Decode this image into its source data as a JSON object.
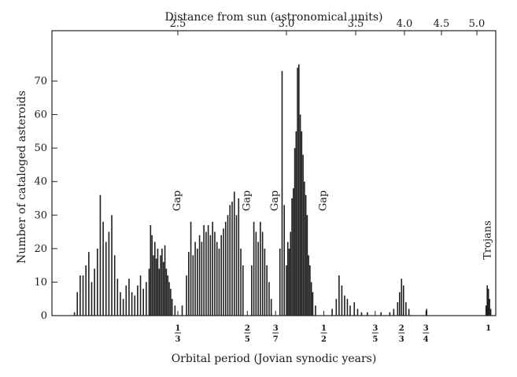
{
  "chart_data": {
    "type": "bar",
    "xlabel": "Orbital period (Jovian synodic years)",
    "ylabel": "Number of cataloged asteroids",
    "top_axis_label": "Distance from sun (astronomical units)",
    "ylim": [
      0,
      76
    ],
    "yticks": [
      "0",
      "10",
      "20",
      "30",
      "40",
      "50",
      "60",
      "70"
    ],
    "top_ticks": [
      {
        "label": "2.5",
        "au": 2.5
      },
      {
        "label": "3.0",
        "au": 3.0
      },
      {
        "label": "3.5",
        "au": 3.5
      },
      {
        "label": "4.0",
        "au": 4.0
      },
      {
        "label": "4.5",
        "au": 4.5
      },
      {
        "label": "5.0",
        "au": 5.0
      }
    ],
    "bottom_ticks": [
      {
        "num": "1",
        "den": "3",
        "au": 2.5
      },
      {
        "num": "2",
        "den": "5",
        "au": 2.82
      },
      {
        "num": "3",
        "den": "7",
        "au": 2.95
      },
      {
        "num": "1",
        "den": "2",
        "au": 3.27
      },
      {
        "num": "3",
        "den": "5",
        "au": 3.7
      },
      {
        "num": "2",
        "den": "3",
        "au": 3.97
      },
      {
        "num": "3",
        "den": "4",
        "au": 4.29
      },
      {
        "num": "1",
        "den": "",
        "au": 5.2
      }
    ],
    "annotations": [
      {
        "text": "Gap",
        "au": 2.5
      },
      {
        "text": "Gap",
        "au": 2.82
      },
      {
        "text": "Gap",
        "au": 2.95
      },
      {
        "text": "Gap",
        "au": 3.27
      },
      {
        "text": "Trojans",
        "au": 5.2
      }
    ],
    "bars": [
      {
        "au": 1.78,
        "v": 1
      },
      {
        "au": 1.8,
        "v": 7
      },
      {
        "au": 1.82,
        "v": 12
      },
      {
        "au": 1.84,
        "v": 12
      },
      {
        "au": 1.86,
        "v": 15
      },
      {
        "au": 1.88,
        "v": 19
      },
      {
        "au": 1.9,
        "v": 10
      },
      {
        "au": 1.92,
        "v": 14
      },
      {
        "au": 1.94,
        "v": 20
      },
      {
        "au": 1.96,
        "v": 36
      },
      {
        "au": 1.98,
        "v": 28
      },
      {
        "au": 2.0,
        "v": 22
      },
      {
        "au": 2.02,
        "v": 25
      },
      {
        "au": 2.04,
        "v": 30
      },
      {
        "au": 2.06,
        "v": 18
      },
      {
        "au": 2.08,
        "v": 11
      },
      {
        "au": 2.1,
        "v": 7
      },
      {
        "au": 2.12,
        "v": 5
      },
      {
        "au": 2.14,
        "v": 9
      },
      {
        "au": 2.16,
        "v": 11
      },
      {
        "au": 2.18,
        "v": 7
      },
      {
        "au": 2.2,
        "v": 6
      },
      {
        "au": 2.22,
        "v": 9
      },
      {
        "au": 2.24,
        "v": 12
      },
      {
        "au": 2.26,
        "v": 8
      },
      {
        "au": 2.28,
        "v": 10
      },
      {
        "au": 2.3,
        "v": 14
      },
      {
        "au": 2.31,
        "v": 27
      },
      {
        "au": 2.32,
        "v": 24
      },
      {
        "au": 2.33,
        "v": 18
      },
      {
        "au": 2.34,
        "v": 22
      },
      {
        "au": 2.35,
        "v": 17
      },
      {
        "au": 2.36,
        "v": 20
      },
      {
        "au": 2.37,
        "v": 14
      },
      {
        "au": 2.38,
        "v": 18
      },
      {
        "au": 2.39,
        "v": 20
      },
      {
        "au": 2.4,
        "v": 16
      },
      {
        "au": 2.41,
        "v": 21
      },
      {
        "au": 2.42,
        "v": 14
      },
      {
        "au": 2.43,
        "v": 12
      },
      {
        "au": 2.44,
        "v": 10
      },
      {
        "au": 2.45,
        "v": 8
      },
      {
        "au": 2.46,
        "v": 5
      },
      {
        "au": 2.48,
        "v": 3
      },
      {
        "au": 2.52,
        "v": 3
      },
      {
        "au": 2.54,
        "v": 12
      },
      {
        "au": 2.55,
        "v": 19
      },
      {
        "au": 2.56,
        "v": 28
      },
      {
        "au": 2.57,
        "v": 18
      },
      {
        "au": 2.58,
        "v": 22
      },
      {
        "au": 2.59,
        "v": 20
      },
      {
        "au": 2.6,
        "v": 24
      },
      {
        "au": 2.61,
        "v": 22
      },
      {
        "au": 2.62,
        "v": 27
      },
      {
        "au": 2.63,
        "v": 25
      },
      {
        "au": 2.64,
        "v": 27
      },
      {
        "au": 2.65,
        "v": 24
      },
      {
        "au": 2.66,
        "v": 28
      },
      {
        "au": 2.67,
        "v": 25
      },
      {
        "au": 2.68,
        "v": 22
      },
      {
        "au": 2.69,
        "v": 20
      },
      {
        "au": 2.7,
        "v": 24
      },
      {
        "au": 2.71,
        "v": 26
      },
      {
        "au": 2.72,
        "v": 28
      },
      {
        "au": 2.73,
        "v": 30
      },
      {
        "au": 2.74,
        "v": 33
      },
      {
        "au": 2.75,
        "v": 34
      },
      {
        "au": 2.76,
        "v": 37
      },
      {
        "au": 2.77,
        "v": 30
      },
      {
        "au": 2.78,
        "v": 35
      },
      {
        "au": 2.79,
        "v": 20
      },
      {
        "au": 2.8,
        "v": 15
      },
      {
        "au": 2.84,
        "v": 15
      },
      {
        "au": 2.85,
        "v": 28
      },
      {
        "au": 2.86,
        "v": 25
      },
      {
        "au": 2.87,
        "v": 22
      },
      {
        "au": 2.88,
        "v": 28
      },
      {
        "au": 2.89,
        "v": 25
      },
      {
        "au": 2.9,
        "v": 20
      },
      {
        "au": 2.91,
        "v": 15
      },
      {
        "au": 2.92,
        "v": 10
      },
      {
        "au": 2.93,
        "v": 5
      },
      {
        "au": 2.97,
        "v": 20
      },
      {
        "au": 2.98,
        "v": 73
      },
      {
        "au": 2.99,
        "v": 33
      },
      {
        "au": 3.0,
        "v": 15
      },
      {
        "au": 3.01,
        "v": 22
      },
      {
        "au": 3.02,
        "v": 20
      },
      {
        "au": 3.03,
        "v": 25
      },
      {
        "au": 3.04,
        "v": 35
      },
      {
        "au": 3.05,
        "v": 38
      },
      {
        "au": 3.06,
        "v": 50
      },
      {
        "au": 3.07,
        "v": 55
      },
      {
        "au": 3.08,
        "v": 74
      },
      {
        "au": 3.09,
        "v": 75
      },
      {
        "au": 3.1,
        "v": 60
      },
      {
        "au": 3.11,
        "v": 55
      },
      {
        "au": 3.12,
        "v": 48
      },
      {
        "au": 3.13,
        "v": 40
      },
      {
        "au": 3.14,
        "v": 36
      },
      {
        "au": 3.15,
        "v": 30
      },
      {
        "au": 3.16,
        "v": 18
      },
      {
        "au": 3.17,
        "v": 15
      },
      {
        "au": 3.18,
        "v": 10
      },
      {
        "au": 3.19,
        "v": 7
      },
      {
        "au": 3.21,
        "v": 3
      },
      {
        "au": 3.33,
        "v": 2
      },
      {
        "au": 3.36,
        "v": 5
      },
      {
        "au": 3.38,
        "v": 12
      },
      {
        "au": 3.4,
        "v": 9
      },
      {
        "au": 3.42,
        "v": 6
      },
      {
        "au": 3.44,
        "v": 5
      },
      {
        "au": 3.46,
        "v": 3
      },
      {
        "au": 3.49,
        "v": 4
      },
      {
        "au": 3.52,
        "v": 2
      },
      {
        "au": 3.56,
        "v": 1
      },
      {
        "au": 3.62,
        "v": 1
      },
      {
        "au": 3.76,
        "v": 1
      },
      {
        "au": 3.85,
        "v": 1
      },
      {
        "au": 3.89,
        "v": 2
      },
      {
        "au": 3.93,
        "v": 4
      },
      {
        "au": 3.95,
        "v": 7
      },
      {
        "au": 3.97,
        "v": 11
      },
      {
        "au": 3.99,
        "v": 9
      },
      {
        "au": 4.02,
        "v": 4
      },
      {
        "au": 4.06,
        "v": 2
      },
      {
        "au": 4.3,
        "v": 2
      },
      {
        "au": 5.16,
        "v": 3
      },
      {
        "au": 5.18,
        "v": 9
      },
      {
        "au": 5.2,
        "v": 8
      },
      {
        "au": 5.22,
        "v": 5
      },
      {
        "au": 5.24,
        "v": 2
      }
    ]
  }
}
